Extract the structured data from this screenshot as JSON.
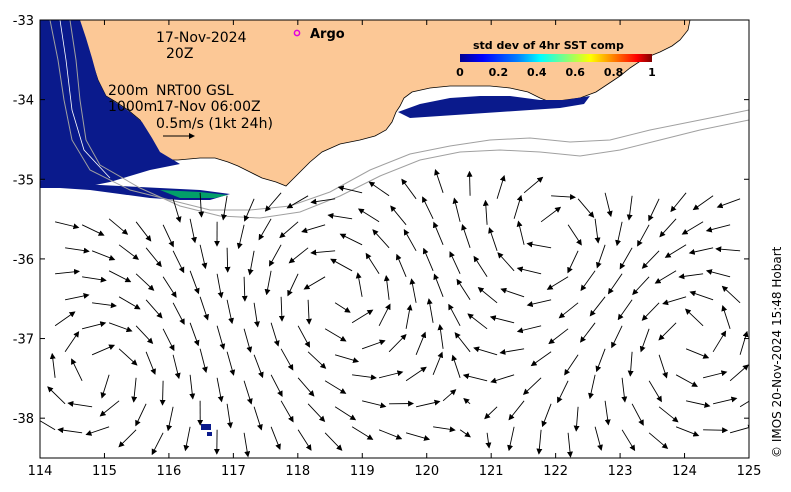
{
  "map": {
    "lon_ticks": [
      "114",
      "115",
      "116",
      "117",
      "118",
      "119",
      "120",
      "121",
      "122",
      "123",
      "124",
      "125"
    ],
    "lat_ticks": [
      "-33",
      "-34",
      "-35",
      "-36",
      "-37",
      "-38"
    ],
    "lon_range": [
      114,
      125
    ],
    "lat_range": [
      -38.5,
      -33
    ],
    "colors": {
      "land": "#fcc896",
      "sst_low": "#0a1a8c",
      "coast": "#000000",
      "isobath": "#a0a0a0"
    }
  },
  "annotations": {
    "date": "17-Nov-2024",
    "time": "20Z",
    "isobath_200": "200m",
    "isobath_1000": "1000m",
    "product": "NRT00 GSL",
    "product_time": "17-Nov 06:00Z",
    "scale_label": "0.5m/s (1kt 24h)"
  },
  "legend": {
    "argo_label": "Argo",
    "argo_color": "#e000e0"
  },
  "colorbar": {
    "title": "std dev of 4hr SST comp",
    "ticks": [
      "0",
      "0.2",
      "0.4",
      "0.6",
      "0.8",
      "1"
    ],
    "colors": [
      "#00008f",
      "#0000ff",
      "#0080ff",
      "#00ffff",
      "#80ff80",
      "#ffff00",
      "#ff8000",
      "#ff0000",
      "#800000"
    ]
  },
  "credit": "© IMOS 20-Nov-2024 15:48 Hobart"
}
